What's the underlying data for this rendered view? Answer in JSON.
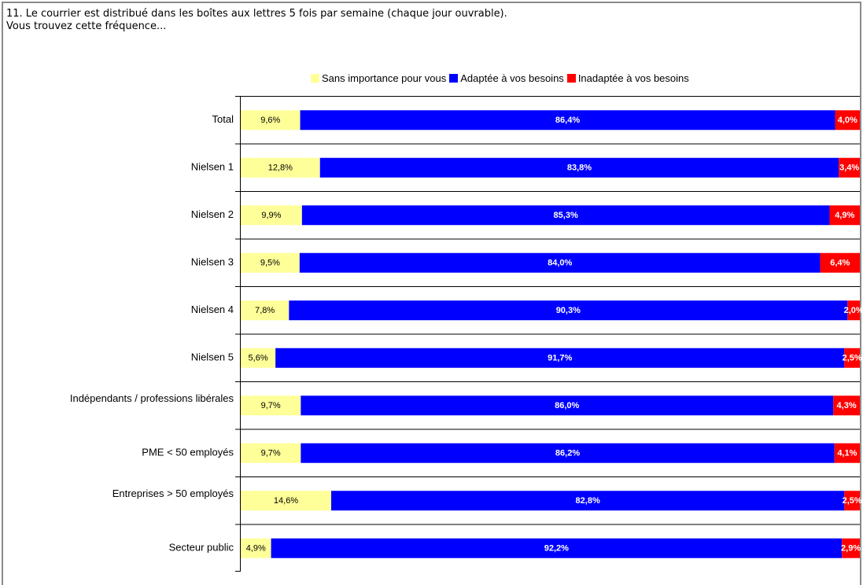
{
  "question": {
    "line1": "11. Le courrier est distribué dans les boîtes aux lettres 5 fois par semaine (chaque jour ouvrable).",
    "line2": "Vous trouvez cette fréquence..."
  },
  "colors": {
    "sans_importance": "#ffff99",
    "adaptee": "#0000ff",
    "inadaptee": "#ff0000"
  },
  "chart_data": {
    "type": "bar",
    "orientation": "horizontal",
    "stacked": true,
    "legend_position": "top",
    "categories": [
      "Total",
      "Nielsen 1",
      "Nielsen 2",
      "Nielsen 3",
      "Nielsen 4",
      "Nielsen 5",
      "Indépendants / professions libérales",
      "PME < 50 employés",
      "Entreprises > 50 employés",
      "Secteur public"
    ],
    "series": [
      {
        "name": "Sans importance pour vous",
        "color": "#ffff99",
        "values": [
          9.6,
          12.8,
          9.9,
          9.5,
          7.8,
          5.6,
          9.7,
          9.7,
          14.6,
          4.9
        ],
        "labels": [
          "9,6%",
          "12,8%",
          "9,9%",
          "9,5%",
          "7,8%",
          "5,6%",
          "9,7%",
          "9,7%",
          "14,6%",
          "4,9%"
        ]
      },
      {
        "name": "Adaptée à vos besoins",
        "color": "#0000ff",
        "values": [
          86.4,
          83.8,
          85.3,
          84.0,
          90.3,
          91.7,
          86.0,
          86.2,
          82.8,
          92.2
        ],
        "labels": [
          "86,4%",
          "83,8%",
          "85,3%",
          "84,0%",
          "90,3%",
          "91,7%",
          "86,0%",
          "86,2%",
          "82,8%",
          "92,2%"
        ]
      },
      {
        "name": "Inadaptée à vos besoins",
        "color": "#ff0000",
        "values": [
          4.0,
          3.4,
          4.9,
          6.4,
          2.0,
          2.5,
          4.3,
          4.1,
          2.5,
          2.9
        ],
        "labels": [
          "4,0%",
          "3,4%",
          "4,9%",
          "6,4%",
          "2,0%",
          "2,5%",
          "4,3%",
          "4,1%",
          "2,5%",
          "2,9%"
        ]
      }
    ]
  }
}
